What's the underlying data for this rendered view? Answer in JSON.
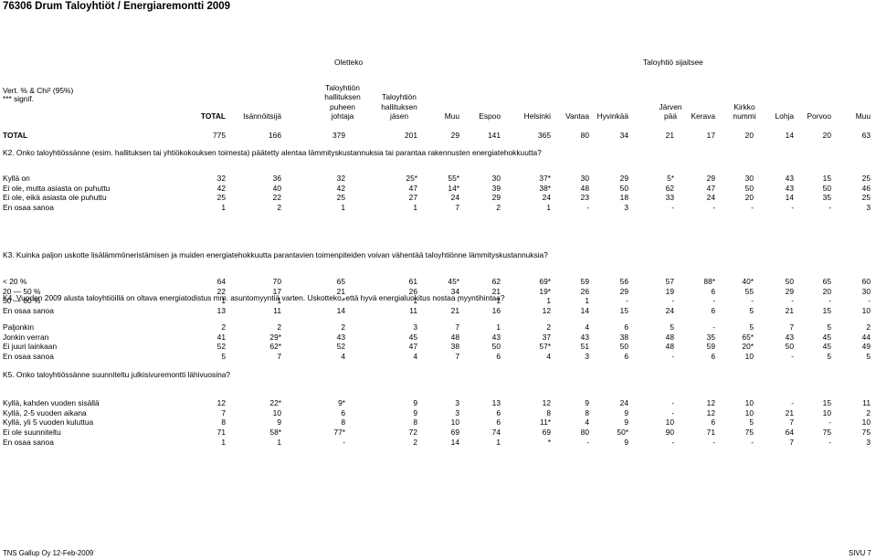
{
  "title": "76306 Drum Taloyhtiöt / Energiaremontti 2009",
  "groups": {
    "left": "Oletteko",
    "right": "Taloyhtiö sijaitsee"
  },
  "stats_note": [
    "Vert. % & Chi² (95%)",
    "*** signif."
  ],
  "columns": [
    {
      "lines": [
        "TOTAL"
      ],
      "bold": true
    },
    {
      "lines": [
        "Isännöitsijä"
      ]
    },
    {
      "lines": [
        "Taloyhtiön",
        "hallituksen",
        "puheen",
        "johtaja"
      ]
    },
    {
      "lines": [
        "Taloyhtiön",
        "hallituksen",
        "jäsen"
      ]
    },
    {
      "lines": [
        "Muu"
      ]
    },
    {
      "lines": [
        "Espoo"
      ]
    },
    {
      "lines": [
        "Helsinki"
      ]
    },
    {
      "lines": [
        "Vantaa"
      ]
    },
    {
      "lines": [
        "Hyvinkää"
      ]
    },
    {
      "lines": [
        "Järven",
        "pää"
      ]
    },
    {
      "lines": [
        "Kerava"
      ]
    },
    {
      "lines": [
        "Kirkko",
        "nummi"
      ]
    },
    {
      "lines": [
        "Lohja"
      ]
    },
    {
      "lines": [
        "Porvoo"
      ]
    },
    {
      "lines": [
        "Muu"
      ]
    }
  ],
  "total_row": {
    "label": "TOTAL",
    "values": [
      "775",
      "166",
      "379",
      "201",
      "29",
      "141",
      "365",
      "80",
      "34",
      "21",
      "17",
      "20",
      "14",
      "20",
      "63"
    ]
  },
  "sections": [
    {
      "question": "K2. Onko taloyhtiössänne (esim. hallituksen tai yhtiökokouksen toimesta) päätetty alentaa lämmityskustannuksia tai parantaa rakennusten energiatehokkuutta?",
      "rows": [
        {
          "label": "Kyllä on",
          "values": [
            "32",
            "36",
            "32",
            "25*",
            "55*",
            "30",
            "37*",
            "30",
            "29",
            "5*",
            "29",
            "30",
            "43",
            "15",
            "25"
          ]
        },
        {
          "label": "Ei ole, mutta asiasta on puhuttu",
          "values": [
            "42",
            "40",
            "42",
            "47",
            "14*",
            "39",
            "38*",
            "48",
            "50",
            "62",
            "47",
            "50",
            "43",
            "50",
            "46"
          ]
        },
        {
          "label": "Ei ole, eikä asiasta ole puhuttu",
          "values": [
            "25",
            "22",
            "25",
            "27",
            "24",
            "29",
            "24",
            "23",
            "18",
            "33",
            "24",
            "20",
            "14",
            "35",
            "25"
          ]
        },
        {
          "label": "En osaa sanoa",
          "values": [
            "1",
            "2",
            "1",
            "1",
            "7",
            "2",
            "1",
            "-",
            "3",
            "-",
            "-",
            "-",
            "-",
            "-",
            "3"
          ]
        }
      ]
    },
    {
      "question": "K3. Kuinka paljon uskotte lisälämmöneristämisen ja muiden energiatehokkuutta parantavien toimenpiteiden voivan vähentää taloyhtiönne lämmityskustannuksia?",
      "rows": [
        {
          "label": "< 20 %",
          "values": [
            "64",
            "70",
            "65",
            "61",
            "45*",
            "62",
            "69*",
            "59",
            "56",
            "57",
            "88*",
            "40*",
            "50",
            "65",
            "60"
          ]
        },
        {
          "label": "20 — 50 %",
          "values": [
            "22",
            "17",
            "21",
            "26",
            "34",
            "21",
            "19*",
            "26",
            "29",
            "19",
            "6",
            "55",
            "29",
            "20",
            "30"
          ]
        },
        {
          "label": "50 — 80 %",
          "values": [
            "1",
            "1",
            "*",
            "1",
            "-",
            "1",
            "1",
            "1",
            "-",
            "-",
            "-",
            "-",
            "-",
            "-",
            "-"
          ]
        },
        {
          "label": "En osaa sanoa",
          "values": [
            "13",
            "11",
            "14",
            "11",
            "21",
            "16",
            "12",
            "14",
            "15",
            "24",
            "6",
            "5",
            "21",
            "15",
            "10"
          ]
        }
      ]
    },
    {
      "question": "K4. Vuoden 2009 alusta taloyhtiöillä on oltava energiatodistus mm. asuntomyyntiä varten. Uskotteko, että hyvä energialuokitus nostaa myyntihintaa?",
      "rows": [
        {
          "label": "Paljonkin",
          "values": [
            "2",
            "2",
            "2",
            "3",
            "7",
            "1",
            "2",
            "4",
            "6",
            "5",
            "-",
            "5",
            "7",
            "5",
            "2"
          ]
        },
        {
          "label": "Jonkin verran",
          "values": [
            "41",
            "29*",
            "43",
            "45",
            "48",
            "43",
            "37",
            "43",
            "38",
            "48",
            "35",
            "65*",
            "43",
            "45",
            "44"
          ]
        },
        {
          "label": "Ei juuri lainkaan",
          "values": [
            "52",
            "62*",
            "52",
            "47",
            "38",
            "50",
            "57*",
            "51",
            "50",
            "48",
            "59",
            "20*",
            "50",
            "45",
            "49"
          ]
        },
        {
          "label": "En osaa sanoa",
          "values": [
            "5",
            "7",
            "4",
            "4",
            "7",
            "6",
            "4",
            "3",
            "6",
            "-",
            "6",
            "10",
            "-",
            "5",
            "5"
          ]
        }
      ]
    },
    {
      "question": "K5. Onko taloyhtiössänne suunniteltu julkisivuremontti lähivuosina?",
      "rows": [
        {
          "label": "Kyllä, kahden vuoden sisällä",
          "values": [
            "12",
            "22*",
            "9*",
            "9",
            "3",
            "13",
            "12",
            "9",
            "24",
            "-",
            "12",
            "10",
            "-",
            "15",
            "11"
          ]
        },
        {
          "label": "Kyllä, 2-5 vuoden aikana",
          "values": [
            "7",
            "10",
            "6",
            "9",
            "3",
            "6",
            "8",
            "8",
            "9",
            "-",
            "12",
            "10",
            "21",
            "10",
            "2"
          ]
        },
        {
          "label": "Kyllä, yli 5 vuoden kuluttua",
          "values": [
            "8",
            "9",
            "8",
            "8",
            "10",
            "6",
            "11*",
            "4",
            "9",
            "10",
            "6",
            "5",
            "7",
            "-",
            "10"
          ]
        },
        {
          "label": "Ei ole suunniteltu",
          "values": [
            "71",
            "58*",
            "77*",
            "72",
            "69",
            "74",
            "69",
            "80",
            "50*",
            "90",
            "71",
            "75",
            "64",
            "75",
            "75"
          ]
        },
        {
          "label": "En osaa sanoa",
          "values": [
            "1",
            "1",
            "-",
            "2",
            "14",
            "1",
            "*",
            "-",
            "9",
            "-",
            "-",
            "-",
            "7",
            "-",
            "3"
          ]
        }
      ]
    }
  ],
  "footer": {
    "left": "TNS Gallup Oy 12-Feb-2009",
    "right": "SIVU 7"
  }
}
